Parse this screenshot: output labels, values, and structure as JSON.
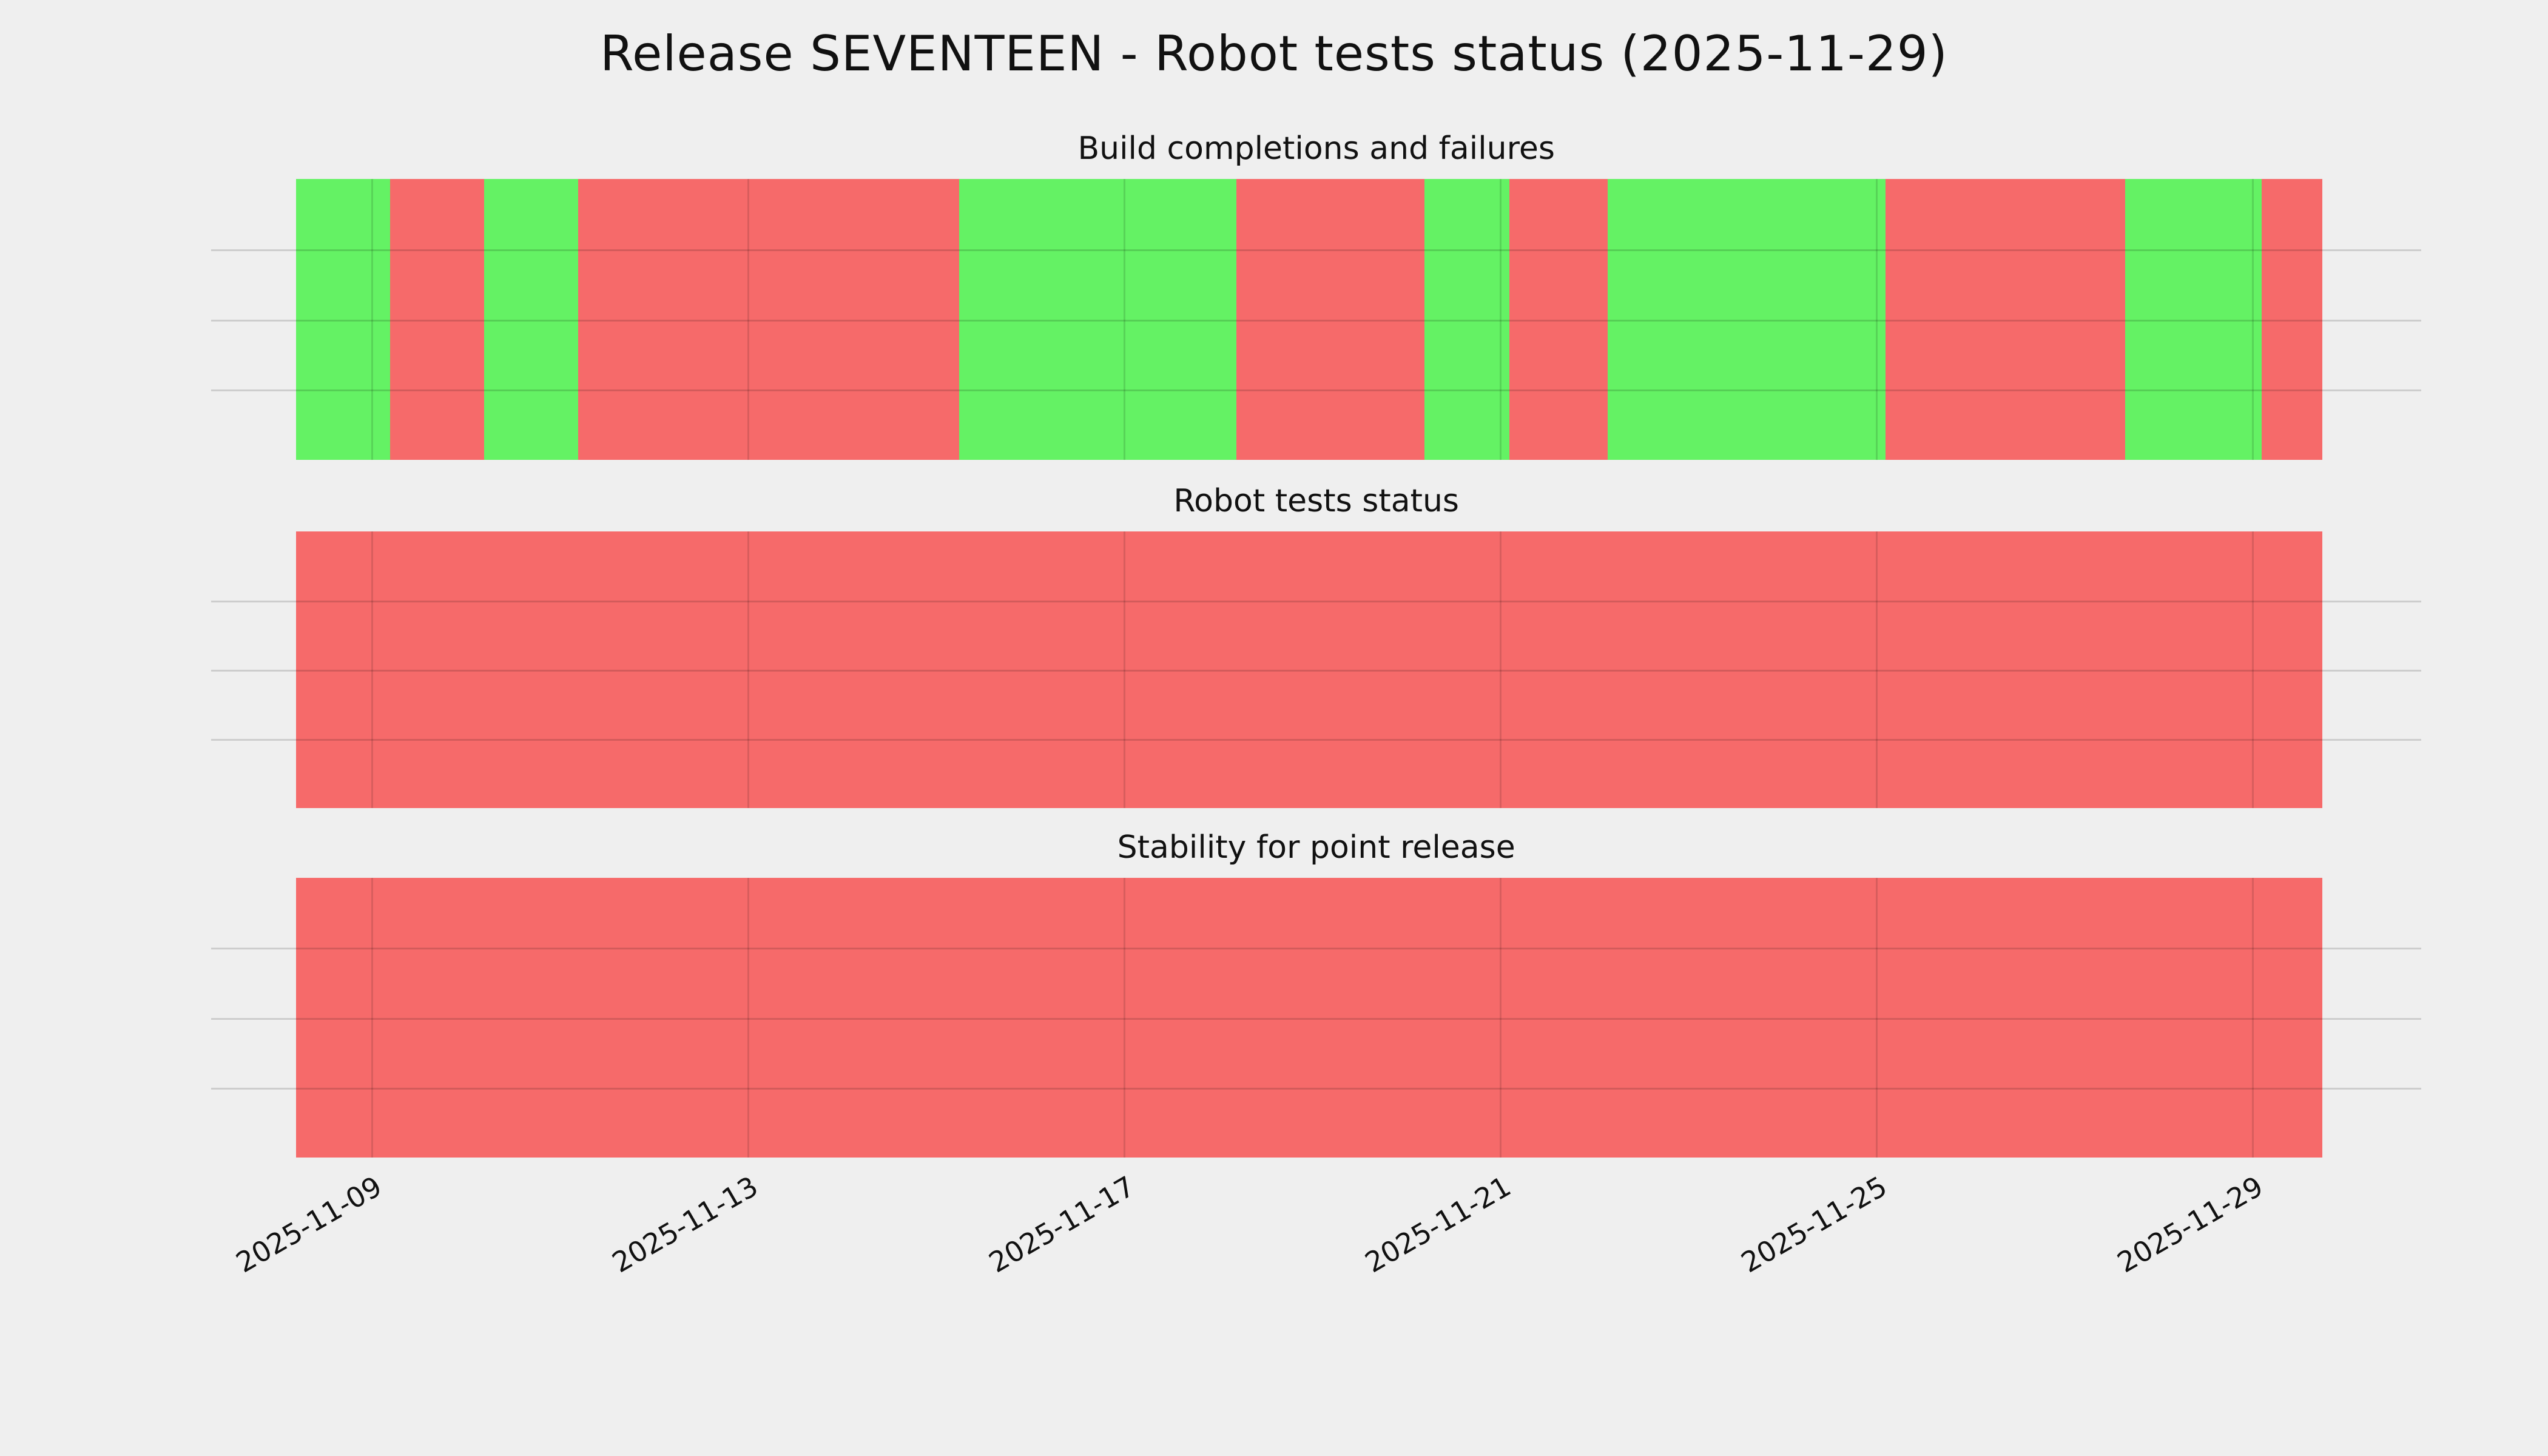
{
  "title": "Release SEVENTEEN - Robot tests status (2025-11-29)",
  "colors": {
    "pass": "#64f264",
    "fail": "#f66a6a",
    "background": "#efefef",
    "grid": "#cbcbcb",
    "text": "#111111"
  },
  "chart_data": {
    "type": "status-timeline",
    "title": "Release SEVENTEEN - Robot tests status (2025-11-29)",
    "legend": "none",
    "grid": "on",
    "x_axis": {
      "unit": "date",
      "month": "2025-11",
      "start_day": 7.3,
      "end_day": 30.8,
      "ticks": [
        {
          "label": "2025-11-09",
          "day": 9
        },
        {
          "label": "2025-11-13",
          "day": 13
        },
        {
          "label": "2025-11-17",
          "day": 17
        },
        {
          "label": "2025-11-21",
          "day": 21
        },
        {
          "label": "2025-11-25",
          "day": 25
        },
        {
          "label": "2025-11-29",
          "day": 29
        }
      ]
    },
    "panels": [
      {
        "title": "Build completions and failures",
        "segments": [
          {
            "status": "pass",
            "start_day": 8.2,
            "end_day": 9.2
          },
          {
            "status": "fail",
            "start_day": 9.2,
            "end_day": 10.2
          },
          {
            "status": "pass",
            "start_day": 10.2,
            "end_day": 11.2
          },
          {
            "status": "fail",
            "start_day": 11.2,
            "end_day": 15.25
          },
          {
            "status": "pass",
            "start_day": 15.25,
            "end_day": 18.2
          },
          {
            "status": "fail",
            "start_day": 18.2,
            "end_day": 20.2
          },
          {
            "status": "pass",
            "start_day": 20.2,
            "end_day": 21.1
          },
          {
            "status": "fail",
            "start_day": 21.1,
            "end_day": 22.15
          },
          {
            "status": "pass",
            "start_day": 22.15,
            "end_day": 25.1
          },
          {
            "status": "fail",
            "start_day": 25.1,
            "end_day": 27.65
          },
          {
            "status": "pass",
            "start_day": 27.65,
            "end_day": 29.1
          },
          {
            "status": "fail",
            "start_day": 29.1,
            "end_day": 29.75
          }
        ]
      },
      {
        "title": "Robot tests status",
        "segments": [
          {
            "status": "fail",
            "start_day": 8.2,
            "end_day": 29.75
          }
        ]
      },
      {
        "title": "Stability for point release",
        "segments": [
          {
            "status": "fail",
            "start_day": 8.2,
            "end_day": 29.75
          }
        ]
      }
    ]
  }
}
